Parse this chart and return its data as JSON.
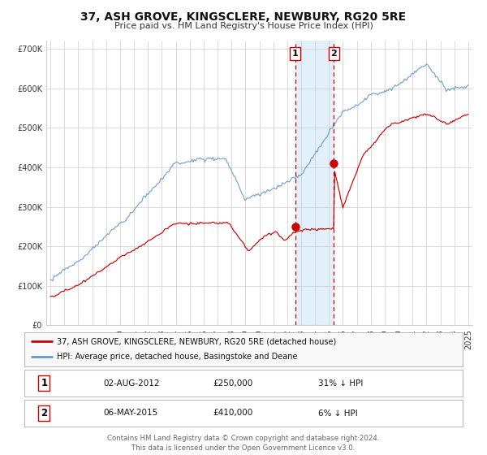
{
  "title": "37, ASH GROVE, KINGSCLERE, NEWBURY, RG20 5RE",
  "subtitle": "Price paid vs. HM Land Registry's House Price Index (HPI)",
  "hpi_label": "HPI: Average price, detached house, Basingstoke and Deane",
  "property_label": "37, ASH GROVE, KINGSCLERE, NEWBURY, RG20 5RE (detached house)",
  "transaction1": {
    "date": "02-AUG-2012",
    "price": 250000,
    "hpi_rel": "31% ↓ HPI"
  },
  "transaction2": {
    "date": "06-MAY-2015",
    "price": 410000,
    "hpi_rel": "6% ↓ HPI"
  },
  "vline1_year": 2012.58,
  "vline2_year": 2015.35,
  "shade_color": "#ddeef8",
  "red_color": "#cc0000",
  "blue_color": "#6699cc",
  "grid_color": "#cccccc",
  "background_color": "#ffffff",
  "label_color": "#333333",
  "ylim": [
    0,
    720000
  ],
  "xlim_start": 1994.7,
  "xlim_end": 2025.3,
  "footer": "Contains HM Land Registry data © Crown copyright and database right 2024.\nThis data is licensed under the Open Government Licence v3.0.",
  "legend_box_color": "#f8f8f8",
  "legend_border_color": "#bbbbbb",
  "title_fontsize": 10,
  "subtitle_fontsize": 8,
  "tick_fontsize": 7,
  "ytick_labels": [
    "£0",
    "£100K",
    "£200K",
    "£300K",
    "£400K",
    "£500K",
    "£600K",
    "£700K"
  ],
  "ytick_values": [
    0,
    100000,
    200000,
    300000,
    400000,
    500000,
    600000,
    700000
  ]
}
